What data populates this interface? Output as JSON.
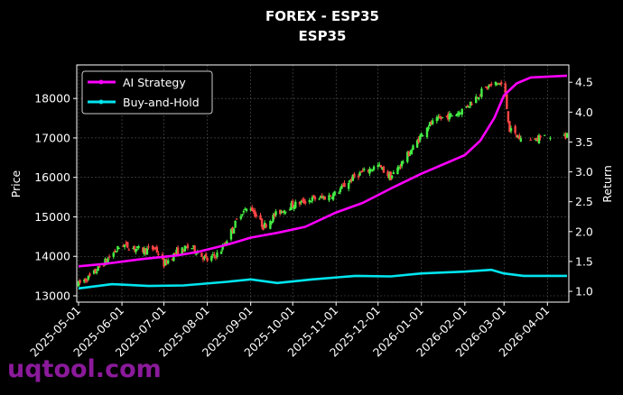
{
  "chart_data": {
    "type": "line+candlestick",
    "title": "FOREX - ESP35",
    "subtitle": "ESP35",
    "ylabel_left": "Price",
    "ylabel_right": "Return",
    "x_tick_labels": [
      "2025-05-01",
      "2025-06-01",
      "2025-07-01",
      "2025-08-01",
      "2025-09-01",
      "2025-10-01",
      "2025-11-01",
      "2025-12-01",
      "2026-01-01",
      "2026-02-01",
      "2026-03-01",
      "2026-04-01"
    ],
    "x_range": [
      "2025-05-01",
      "2026-04-15"
    ],
    "price_ticks": [
      13000,
      14000,
      15000,
      16000,
      17000,
      18000
    ],
    "price_range": [
      12840,
      18850
    ],
    "return_ticks": [
      1.0,
      1.5,
      2.0,
      2.5,
      3.0,
      3.5,
      4.0,
      4.5
    ],
    "return_range": [
      0.82,
      4.79
    ],
    "grid": true,
    "legend_position": "top-left",
    "colors": {
      "ai_strategy": "#ff00ff",
      "buy_and_hold": "#00e5ee",
      "candle_up": "#44ee44",
      "candle_down": "#ff4444",
      "background": "#000000"
    },
    "series": [
      {
        "name": "AI Strategy",
        "axis": "right",
        "points": [
          [
            "2025-05-01",
            1.42
          ],
          [
            "2025-05-20",
            1.46
          ],
          [
            "2025-06-15",
            1.54
          ],
          [
            "2025-07-10",
            1.6
          ],
          [
            "2025-07-25",
            1.66
          ],
          [
            "2025-08-15",
            1.78
          ],
          [
            "2025-09-01",
            1.9
          ],
          [
            "2025-09-20",
            1.98
          ],
          [
            "2025-10-10",
            2.08
          ],
          [
            "2025-11-01",
            2.32
          ],
          [
            "2025-11-20",
            2.48
          ],
          [
            "2025-12-10",
            2.72
          ],
          [
            "2026-01-01",
            2.97
          ],
          [
            "2026-01-20",
            3.16
          ],
          [
            "2026-02-01",
            3.28
          ],
          [
            "2026-02-12",
            3.52
          ],
          [
            "2026-02-22",
            3.9
          ],
          [
            "2026-03-01",
            4.28
          ],
          [
            "2026-03-10",
            4.48
          ],
          [
            "2026-03-20",
            4.58
          ],
          [
            "2026-04-15",
            4.61
          ]
        ]
      },
      {
        "name": "Buy-and-Hold",
        "axis": "right",
        "points": [
          [
            "2025-05-01",
            1.05
          ],
          [
            "2025-05-25",
            1.12
          ],
          [
            "2025-06-20",
            1.09
          ],
          [
            "2025-07-15",
            1.1
          ],
          [
            "2025-08-15",
            1.16
          ],
          [
            "2025-09-01",
            1.2
          ],
          [
            "2025-09-20",
            1.14
          ],
          [
            "2025-10-15",
            1.2
          ],
          [
            "2025-11-15",
            1.26
          ],
          [
            "2025-12-10",
            1.25
          ],
          [
            "2026-01-01",
            1.3
          ],
          [
            "2026-01-20",
            1.32
          ],
          [
            "2026-02-01",
            1.33
          ],
          [
            "2026-02-20",
            1.36
          ],
          [
            "2026-03-01",
            1.3
          ],
          [
            "2026-03-15",
            1.26
          ],
          [
            "2026-04-15",
            1.26
          ]
        ]
      },
      {
        "name": "ESP35",
        "axis": "left",
        "kind": "candlestick",
        "close_path": [
          [
            "2025-05-01",
            13300
          ],
          [
            "2025-05-10",
            13500
          ],
          [
            "2025-05-25",
            14050
          ],
          [
            "2025-06-01",
            14300
          ],
          [
            "2025-06-15",
            14150
          ],
          [
            "2025-06-25",
            14200
          ],
          [
            "2025-07-01",
            13800
          ],
          [
            "2025-07-10",
            14100
          ],
          [
            "2025-07-20",
            14250
          ],
          [
            "2025-08-01",
            13900
          ],
          [
            "2025-08-10",
            14100
          ],
          [
            "2025-08-25",
            15100
          ],
          [
            "2025-09-01",
            15250
          ],
          [
            "2025-09-10",
            14750
          ],
          [
            "2025-09-20",
            15100
          ],
          [
            "2025-10-01",
            15300
          ],
          [
            "2025-10-15",
            15450
          ],
          [
            "2025-10-25",
            15500
          ],
          [
            "2025-11-01",
            15600
          ],
          [
            "2025-11-15",
            16050
          ],
          [
            "2025-12-01",
            16300
          ],
          [
            "2025-12-10",
            16000
          ],
          [
            "2025-12-25",
            16700
          ],
          [
            "2026-01-05",
            17300
          ],
          [
            "2026-01-15",
            17500
          ],
          [
            "2026-01-25",
            17600
          ],
          [
            "2026-02-01",
            17750
          ],
          [
            "2026-02-15",
            18250
          ],
          [
            "2026-02-25",
            18400
          ],
          [
            "2026-03-01",
            18300
          ],
          [
            "2026-03-05",
            17200
          ],
          [
            "2026-03-15",
            16900
          ],
          [
            "2026-03-25",
            17000
          ],
          [
            "2026-04-15",
            17050
          ]
        ]
      }
    ]
  },
  "watermark": "uqtool.com"
}
